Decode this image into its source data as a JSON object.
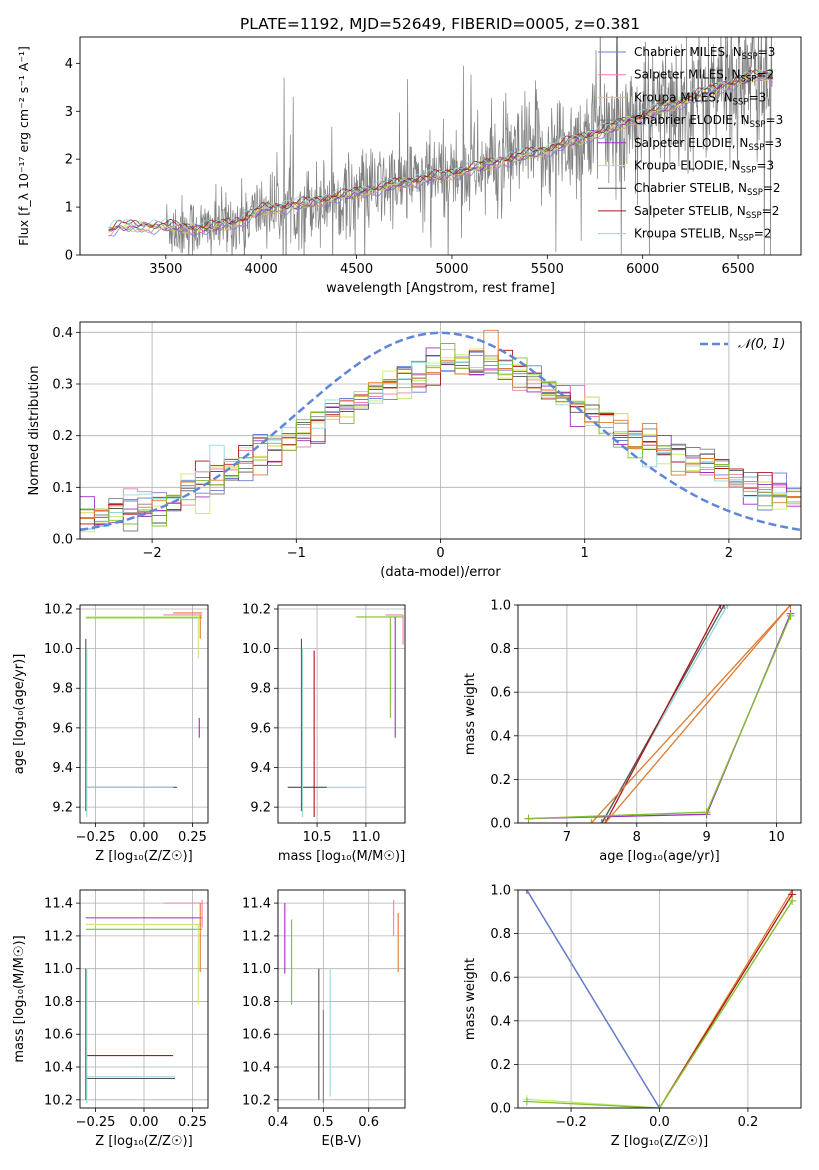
{
  "figure_title": "PLATE=1192, MJD=52649, FIBERID=0005, z=0.381",
  "colors": {
    "chab_miles": "#6b7fd6",
    "salp_miles": "#ef7fb2",
    "krou_miles": "#d4d432",
    "chab_elodie": "#808080",
    "salp_elodie": "#9b2fc0",
    "krou_elodie": "#c7ea6a",
    "chab_stelib": "#555555",
    "salp_stelib": "#b01515",
    "krou_stelib": "#93d8e0",
    "orange": "#e07a30",
    "green": "#7fc030",
    "gauss": "#5f86d8",
    "data": "#808080"
  },
  "chart_data": [
    {
      "id": "spectrum",
      "type": "line",
      "title": "PLATE=1192, MJD=52649, FIBERID=0005, z=0.381",
      "xlabel": "wavelength [Angstrom, rest frame]",
      "ylabel": "Flux [f_λ 10⁻¹⁷ erg cm⁻² s⁻¹ A⁻¹]",
      "xlim": [
        3050,
        6830
      ],
      "ylim": [
        0,
        4.55
      ],
      "xticks": [
        3500,
        4000,
        4500,
        5000,
        5500,
        6000,
        6500
      ],
      "yticks": [
        0,
        1,
        2,
        3,
        4
      ],
      "grid": false,
      "legend": "right",
      "series": [
        {
          "name": "Chabrier MILES, N_SSP=3",
          "sub": "SSP",
          "base": "Chabrier MILES, N",
          "tail": "=3",
          "color_key": "chab_miles"
        },
        {
          "name": "Salpeter MILES, N_SSP=2",
          "sub": "SSP",
          "base": "Salpeter MILES, N",
          "tail": "=2",
          "color_key": "salp_miles"
        },
        {
          "name": "Kroupa MILES, N_SSP=3",
          "sub": "SSP",
          "base": "Kroupa MILES, N",
          "tail": "=3",
          "color_key": "krou_miles"
        },
        {
          "name": "Chabrier ELODIE, N_SSP=3",
          "sub": "SSP",
          "base": "Chabrier ELODIE, N",
          "tail": "=3",
          "color_key": "chab_elodie"
        },
        {
          "name": "Salpeter ELODIE, N_SSP=3",
          "sub": "SSP",
          "base": "Salpeter ELODIE, N",
          "tail": "=3",
          "color_key": "salp_elodie"
        },
        {
          "name": "Kroupa ELODIE, N_SSP=3",
          "sub": "SSP",
          "base": "Kroupa ELODIE, N",
          "tail": "=3",
          "color_key": "krou_elodie"
        },
        {
          "name": "Chabrier STELIB, N_SSP=2",
          "sub": "SSP",
          "base": "Chabrier STELIB, N",
          "tail": "=2",
          "color_key": "chab_stelib"
        },
        {
          "name": "Salpeter STELIB, N_SSP=2",
          "sub": "SSP",
          "base": "Salpeter STELIB, N",
          "tail": "=2",
          "color_key": "salp_stelib"
        },
        {
          "name": "Kroupa STELIB, N_SSP=2",
          "sub": "SSP",
          "base": "Kroupa STELIB, N",
          "tail": "=2",
          "color_key": "krou_stelib"
        }
      ],
      "model_continuum": {
        "x": [
          3200,
          3250,
          3500,
          3700,
          3900,
          4000,
          4200,
          4500,
          4800,
          5000,
          5200,
          5500,
          5800,
          6000,
          6200,
          6400,
          6600
        ],
        "y": [
          0.5,
          0.6,
          0.6,
          0.55,
          0.72,
          0.95,
          1.05,
          1.3,
          1.55,
          1.7,
          1.9,
          2.2,
          2.6,
          2.9,
          3.2,
          3.5,
          3.75
        ]
      },
      "model_start_x": 3200,
      "data_start_x": 3500,
      "data_end_x": 6680
    },
    {
      "id": "residuals",
      "type": "step",
      "xlabel": "(data-model)/error",
      "ylabel": "Normed distribution",
      "xlim": [
        -2.5,
        2.5
      ],
      "ylim": [
        0,
        0.42
      ],
      "xticks": [
        -2,
        -1,
        0,
        1,
        2
      ],
      "yticks": [
        0.0,
        0.1,
        0.2,
        0.3,
        0.4
      ],
      "grid": true,
      "legend": "top-right",
      "gaussian_label": "𝒩(0, 1)",
      "gaussian_mean": 0,
      "gaussian_sigma": 1,
      "bin_width": 0.1,
      "hist_center": {
        "x": [
          -2.5,
          -2.0,
          -1.5,
          -1.0,
          -0.5,
          0.0,
          0.3,
          0.7,
          1.0,
          1.5,
          2.0,
          2.5
        ],
        "y": [
          0.035,
          0.06,
          0.13,
          0.2,
          0.28,
          0.33,
          0.35,
          0.3,
          0.245,
          0.18,
          0.12,
          0.075
        ]
      },
      "series_color_keys": [
        "chab_miles",
        "salp_miles",
        "krou_miles",
        "chab_elodie",
        "salp_elodie",
        "krou_elodie",
        "chab_stelib",
        "salp_stelib",
        "krou_stelib",
        "orange",
        "green"
      ]
    },
    {
      "id": "age_vs_Z",
      "type": "errorbar",
      "xlabel": "Z [log₁₀(Z/Z☉)]",
      "ylabel": "age  [log₁₀(age/yr)]",
      "xlim": [
        -0.33,
        0.33
      ],
      "ylim": [
        9.12,
        10.22
      ],
      "xticks": [
        -0.25,
        0.0,
        0.25
      ],
      "yticks": [
        9.2,
        9.4,
        9.6,
        9.8,
        10.0,
        10.2
      ],
      "grid": true,
      "hbars": [
        {
          "x0": -0.3,
          "x1": 0.3,
          "y": 10.16,
          "color_key": "krou_elodie"
        },
        {
          "x0": -0.3,
          "x1": 0.3,
          "y": 10.155,
          "color_key": "green"
        },
        {
          "x0": 0.1,
          "x1": 0.3,
          "y": 10.17,
          "color_key": "salp_miles"
        },
        {
          "x0": 0.15,
          "x1": 0.3,
          "y": 10.18,
          "color_key": "orange"
        },
        {
          "x0": -0.3,
          "x1": 0.17,
          "y": 9.3,
          "color_key": "chab_stelib"
        },
        {
          "x0": -0.3,
          "x1": 0.15,
          "y": 9.3,
          "color_key": "krou_stelib"
        }
      ],
      "vbars": [
        {
          "x": -0.3,
          "y0": 9.18,
          "y1": 10.05,
          "color_key": "chab_stelib"
        },
        {
          "x": -0.295,
          "y0": 9.15,
          "y1": 10.0,
          "color_key": "krou_stelib"
        },
        {
          "x": 0.29,
          "y0": 10.05,
          "y1": 10.17,
          "color_key": "orange"
        },
        {
          "x": 0.285,
          "y0": 9.55,
          "y1": 9.65,
          "color_key": "salp_elodie"
        },
        {
          "x": 0.28,
          "y0": 9.95,
          "y1": 10.17,
          "color_key": "krou_elodie"
        }
      ]
    },
    {
      "id": "age_vs_mass",
      "type": "errorbar",
      "xlabel": "mass [log₁₀(M/M☉)]",
      "ylabel": "",
      "xlim": [
        10.1,
        11.4
      ],
      "ylim": [
        9.12,
        10.22
      ],
      "xticks": [
        10.5,
        11.0
      ],
      "yticks": [
        9.2,
        9.4,
        9.6,
        9.8,
        10.0,
        10.2
      ],
      "grid": true,
      "hbars": [
        {
          "x0": 10.9,
          "x1": 11.38,
          "y": 10.16,
          "color_key": "green"
        },
        {
          "x0": 11.2,
          "x1": 11.38,
          "y": 10.17,
          "color_key": "salp_miles"
        },
        {
          "x0": 10.2,
          "x1": 11.0,
          "y": 9.3,
          "color_key": "krou_stelib"
        },
        {
          "x0": 10.2,
          "x1": 10.6,
          "y": 9.3,
          "color_key": "chab_stelib"
        }
      ],
      "vbars": [
        {
          "x": 10.34,
          "y0": 9.18,
          "y1": 10.05,
          "color_key": "chab_stelib"
        },
        {
          "x": 10.35,
          "y0": 9.15,
          "y1": 10.0,
          "color_key": "krou_stelib"
        },
        {
          "x": 10.47,
          "y0": 9.15,
          "y1": 9.99,
          "color_key": "salp_stelib"
        },
        {
          "x": 11.25,
          "y0": 9.65,
          "y1": 10.16,
          "color_key": "green"
        },
        {
          "x": 11.3,
          "y0": 9.55,
          "y1": 10.16,
          "color_key": "salp_elodie"
        },
        {
          "x": 11.38,
          "y0": 10.02,
          "y1": 10.17,
          "color_key": "salp_miles"
        }
      ]
    },
    {
      "id": "mass_weight_vs_age",
      "type": "line",
      "xlabel": "age  [log₁₀(age/yr)]",
      "ylabel": "mass weight",
      "xlim": [
        6.3,
        10.35
      ],
      "ylim": [
        0,
        1
      ],
      "xticks": [
        7,
        8,
        9,
        10
      ],
      "yticks": [
        0.0,
        0.2,
        0.4,
        0.6,
        0.8,
        1.0
      ],
      "grid": true,
      "series": [
        {
          "color_key": "krou_stelib",
          "x": [
            7.5,
            9.3
          ],
          "y": [
            0.0,
            1.0
          ]
        },
        {
          "color_key": "chab_stelib",
          "x": [
            7.5,
            9.25
          ],
          "y": [
            0.0,
            1.0
          ]
        },
        {
          "color_key": "salp_stelib",
          "x": [
            7.55,
            9.2
          ],
          "y": [
            0.0,
            1.0
          ]
        },
        {
          "color_key": "orange",
          "x": [
            7.35,
            10.2
          ],
          "y": [
            0.0,
            1.0
          ]
        },
        {
          "color_key": "orange",
          "x": [
            7.55,
            10.2
          ],
          "y": [
            0.0,
            1.0
          ]
        },
        {
          "color_key": "krou_elodie",
          "x": [
            6.45,
            9.0,
            10.2
          ],
          "y": [
            0.02,
            0.05,
            0.95
          ]
        },
        {
          "color_key": "salp_elodie",
          "x": [
            6.45,
            9.0,
            10.2
          ],
          "y": [
            0.02,
            0.04,
            0.96
          ]
        },
        {
          "color_key": "green",
          "x": [
            6.45,
            9.0,
            10.2
          ],
          "y": [
            0.02,
            0.05,
            0.95
          ]
        }
      ]
    },
    {
      "id": "mass_vs_Z",
      "type": "errorbar",
      "xlabel": "Z [log₁₀(Z/Z☉)]",
      "ylabel": "mass [log₁₀(M/M☉)]",
      "xlim": [
        -0.33,
        0.33
      ],
      "ylim": [
        10.15,
        11.48
      ],
      "xticks": [
        -0.25,
        0.0,
        0.25
      ],
      "yticks": [
        10.2,
        10.4,
        10.6,
        10.8,
        11.0,
        11.2,
        11.4
      ],
      "grid": true,
      "hbars": [
        {
          "x0": 0.1,
          "x1": 0.3,
          "y": 11.4,
          "color_key": "salp_miles"
        },
        {
          "x0": -0.3,
          "x1": 0.3,
          "y": 11.31,
          "color_key": "salp_elodie"
        },
        {
          "x0": -0.3,
          "x1": 0.3,
          "y": 11.27,
          "color_key": "krou_elodie"
        },
        {
          "x0": -0.3,
          "x1": 0.3,
          "y": 11.24,
          "color_key": "green"
        },
        {
          "x0": -0.3,
          "x1": 0.15,
          "y": 10.47,
          "color_key": "salp_stelib"
        },
        {
          "x0": -0.3,
          "x1": 0.16,
          "y": 10.34,
          "color_key": "krou_stelib"
        },
        {
          "x0": -0.3,
          "x1": 0.16,
          "y": 10.33,
          "color_key": "chab_stelib"
        }
      ],
      "vbars": [
        {
          "x": -0.3,
          "y0": 10.2,
          "y1": 11.0,
          "color_key": "chab_stelib"
        },
        {
          "x": -0.295,
          "y0": 10.18,
          "y1": 11.0,
          "color_key": "krou_stelib"
        },
        {
          "x": 0.29,
          "y0": 10.98,
          "y1": 11.4,
          "color_key": "orange"
        },
        {
          "x": 0.28,
          "y0": 10.78,
          "y1": 11.27,
          "color_key": "krou_elodie"
        },
        {
          "x": 0.3,
          "y0": 11.25,
          "y1": 11.42,
          "color_key": "salp_miles"
        }
      ]
    },
    {
      "id": "mass_vs_EBV",
      "type": "errorbar",
      "xlabel": "E(B-V)",
      "ylabel": "",
      "xlim": [
        0.4,
        0.68
      ],
      "ylim": [
        10.15,
        11.48
      ],
      "xticks": [
        0.4,
        0.5,
        0.6
      ],
      "yticks": [
        10.2,
        10.4,
        10.6,
        10.8,
        11.0,
        11.2,
        11.4
      ],
      "grid": true,
      "vbars": [
        {
          "x": 0.415,
          "y0": 10.97,
          "y1": 11.4,
          "color_key": "salp_elodie"
        },
        {
          "x": 0.43,
          "y0": 10.78,
          "y1": 11.3,
          "color_key": "green"
        },
        {
          "x": 0.49,
          "y0": 10.2,
          "y1": 11.0,
          "color_key": "chab_stelib"
        },
        {
          "x": 0.5,
          "y0": 10.18,
          "y1": 10.75,
          "color_key": "chab_elodie"
        },
        {
          "x": 0.515,
          "y0": 10.22,
          "y1": 11.0,
          "color_key": "krou_stelib"
        },
        {
          "x": 0.655,
          "y0": 11.2,
          "y1": 11.42,
          "color_key": "salp_miles"
        },
        {
          "x": 0.665,
          "y0": 10.98,
          "y1": 11.34,
          "color_key": "orange"
        }
      ]
    },
    {
      "id": "mass_weight_vs_Z",
      "type": "line",
      "xlabel": "Z [log₁₀(Z/Z☉)]",
      "ylabel": "mass weight",
      "xlim": [
        -0.32,
        0.32
      ],
      "ylim": [
        0,
        1
      ],
      "xticks": [
        -0.2,
        0.0,
        0.2
      ],
      "yticks": [
        0.0,
        0.2,
        0.4,
        0.6,
        0.8,
        1.0
      ],
      "grid": true,
      "series": [
        {
          "color_key": "krou_stelib",
          "x": [
            -0.3,
            0.0
          ],
          "y": [
            1.0,
            0.0
          ]
        },
        {
          "color_key": "chab_stelib",
          "x": [
            -0.3,
            0.0
          ],
          "y": [
            1.0,
            0.0
          ]
        },
        {
          "color_key": "chab_miles",
          "x": [
            -0.3,
            0.0
          ],
          "y": [
            1.0,
            0.0
          ]
        },
        {
          "color_key": "orange",
          "x": [
            0.0,
            0.3
          ],
          "y": [
            0.0,
            1.0
          ]
        },
        {
          "color_key": "salp_stelib",
          "x": [
            0.0,
            0.3
          ],
          "y": [
            0.0,
            0.98
          ]
        },
        {
          "color_key": "krou_elodie",
          "x": [
            -0.3,
            0.0,
            0.3
          ],
          "y": [
            0.04,
            0.0,
            0.95
          ]
        },
        {
          "color_key": "green",
          "x": [
            -0.3,
            0.0,
            0.3
          ],
          "y": [
            0.03,
            0.0,
            0.95
          ]
        }
      ]
    }
  ]
}
